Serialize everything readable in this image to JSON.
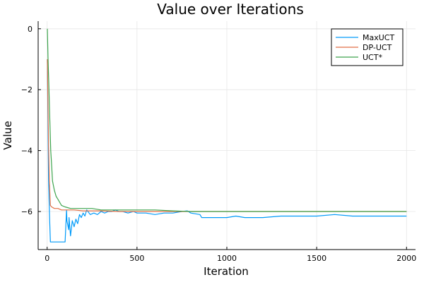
{
  "chart_data": {
    "type": "line",
    "title": "Value over Iterations",
    "xlabel": "Iteration",
    "ylabel": "Value",
    "xlim": [
      -50,
      2050
    ],
    "ylim": [
      -7.25,
      0.25
    ],
    "xticks": [
      0,
      500,
      1000,
      1500,
      2000
    ],
    "xtick_labels": [
      "0",
      "500",
      "1000",
      "1500",
      "2000"
    ],
    "yticks": [
      0,
      -2,
      -4,
      -6
    ],
    "ytick_labels": [
      "0",
      "−2",
      "−4",
      "−6"
    ],
    "grid": true,
    "legend_position": "top-right",
    "series": [
      {
        "name": "MaxUCT",
        "color": "#009af9",
        "x": [
          1,
          8,
          14,
          18,
          20,
          30,
          60,
          100,
          108,
          110,
          120,
          122,
          130,
          140,
          150,
          160,
          170,
          180,
          190,
          200,
          210,
          220,
          240,
          260,
          280,
          300,
          320,
          340,
          360,
          380,
          400,
          420,
          450,
          480,
          500,
          550,
          600,
          650,
          700,
          750,
          780,
          800,
          850,
          860,
          900,
          1000,
          1050,
          1100,
          1150,
          1200,
          1300,
          1400,
          1500,
          1600,
          1700,
          1800,
          1900,
          2000
        ],
        "y": [
          -1,
          -5,
          -6.3,
          -7.0,
          -7.0,
          -7.0,
          -7.0,
          -7.0,
          -5.95,
          -6.3,
          -6.6,
          -6.2,
          -6.8,
          -6.3,
          -6.5,
          -6.25,
          -6.4,
          -6.1,
          -6.2,
          -6.05,
          -6.15,
          -5.95,
          -6.1,
          -6.05,
          -6.1,
          -6.0,
          -6.05,
          -6.0,
          -6.0,
          -5.95,
          -6.0,
          -6.0,
          -6.05,
          -6.0,
          -6.05,
          -6.05,
          -6.1,
          -6.05,
          -6.05,
          -6.0,
          -5.98,
          -6.05,
          -6.1,
          -6.2,
          -6.2,
          -6.2,
          -6.15,
          -6.2,
          -6.2,
          -6.2,
          -6.15,
          -6.15,
          -6.15,
          -6.1,
          -6.15,
          -6.15,
          -6.15,
          -6.15
        ]
      },
      {
        "name": "DP-UCT",
        "color": "#e26f46",
        "x": [
          1,
          4,
          8,
          12,
          18,
          25,
          40,
          60,
          80,
          100,
          150,
          200,
          300,
          400,
          500,
          600,
          700,
          800,
          1000,
          1500,
          2000
        ],
        "y": [
          -1.0,
          -2.2,
          -3.8,
          -5.0,
          -5.8,
          -5.85,
          -5.9,
          -5.9,
          -5.95,
          -5.95,
          -5.95,
          -5.98,
          -5.98,
          -6.0,
          -6.0,
          -6.0,
          -6.0,
          -6.0,
          -6.0,
          -6.0,
          -6.0
        ]
      },
      {
        "name": "UCT*",
        "color": "#3da44d",
        "x": [
          1,
          5,
          10,
          15,
          20,
          25,
          30,
          40,
          50,
          60,
          70,
          80,
          100,
          130,
          160,
          200,
          250,
          300,
          400,
          500,
          600,
          700,
          800,
          1000,
          1500,
          2000
        ],
        "y": [
          0,
          -1.0,
          -2.0,
          -3.0,
          -4.0,
          -4.5,
          -5.0,
          -5.3,
          -5.5,
          -5.6,
          -5.7,
          -5.8,
          -5.85,
          -5.9,
          -5.9,
          -5.9,
          -5.9,
          -5.95,
          -5.95,
          -5.95,
          -5.95,
          -5.98,
          -6.0,
          -6.0,
          -6.0,
          -6.0
        ]
      }
    ]
  }
}
